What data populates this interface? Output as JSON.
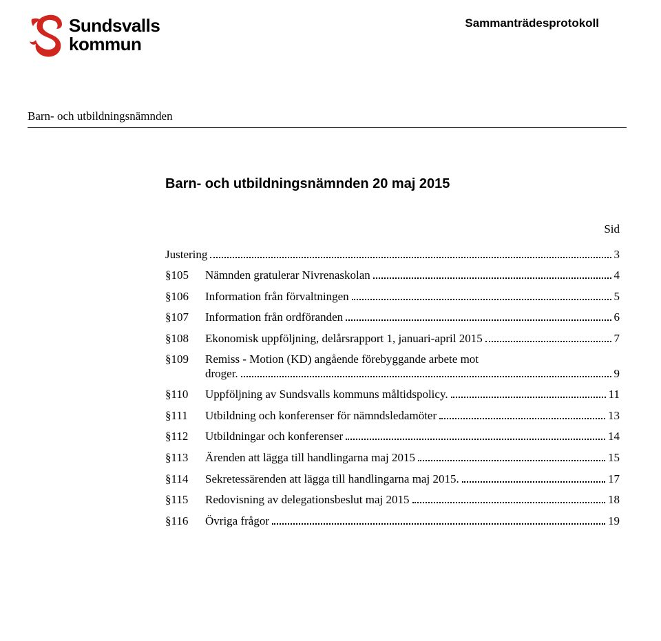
{
  "logo": {
    "line1": "Sundsvalls",
    "line2": "kommun",
    "dragon_color": "#d1261f"
  },
  "doc_type": "Sammanträdesprotokoll",
  "committee": "Barn- och utbildningsnämnden",
  "meeting_title": "Barn- och utbildningsnämnden 20 maj 2015",
  "sid_label": "Sid",
  "toc": {
    "justering": {
      "label": "Justering",
      "page": "3"
    },
    "items": [
      {
        "section": "§105",
        "lines": [
          "Nämnden gratulerar Nivrenaskolan"
        ],
        "page": "4"
      },
      {
        "section": "§106",
        "lines": [
          "Information från förvaltningen"
        ],
        "page": "5"
      },
      {
        "section": "§107",
        "lines": [
          "Information från ordföranden"
        ],
        "page": "6"
      },
      {
        "section": "§108",
        "lines": [
          "Ekonomisk uppföljning, delårsrapport 1, januari-april 2015"
        ],
        "page": "7"
      },
      {
        "section": "§109",
        "lines": [
          "Remiss - Motion (KD) angående förebyggande arbete mot",
          "droger."
        ],
        "page": "9"
      },
      {
        "section": "§110",
        "lines": [
          "Uppföljning av Sundsvalls kommuns måltidspolicy."
        ],
        "page": "11"
      },
      {
        "section": "§111",
        "lines": [
          "Utbildning och konferenser för nämndsledamöter"
        ],
        "page": "13"
      },
      {
        "section": "§112",
        "lines": [
          "Utbildningar och konferenser"
        ],
        "page": "14"
      },
      {
        "section": "§113",
        "lines": [
          "Ärenden att lägga till handlingarna maj 2015"
        ],
        "page": "15"
      },
      {
        "section": "§114",
        "lines": [
          "Sekretessärenden att lägga till handlingarna maj 2015."
        ],
        "page": "17"
      },
      {
        "section": "§115",
        "lines": [
          "Redovisning av delegationsbeslut maj 2015"
        ],
        "page": "18"
      },
      {
        "section": "§116",
        "lines": [
          "Övriga frågor"
        ],
        "page": "19"
      }
    ]
  }
}
